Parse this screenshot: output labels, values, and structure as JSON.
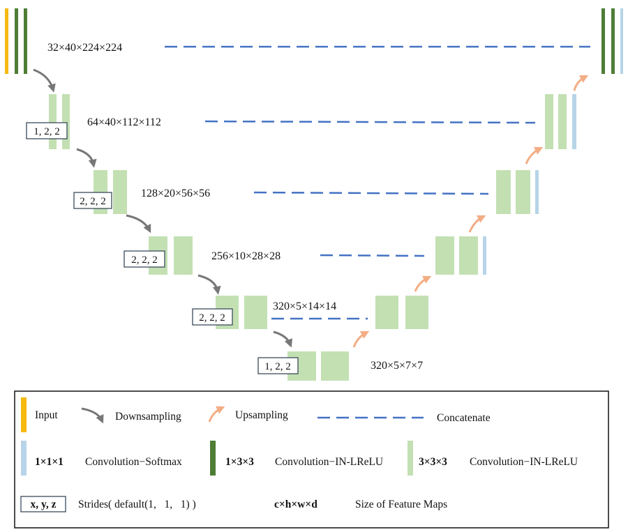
{
  "colors": {
    "input": "#f5b90f",
    "conv_1x3x3": "#4e7d36",
    "conv_3x3x3": "#c3e0b3",
    "conv_softmax": "#b7d4e8",
    "downsample": "#777777",
    "upsample": "#f3ad85",
    "concat": "#4472c4",
    "text": "#111111"
  },
  "levels": [
    {
      "dims": "32×40×224×224"
    },
    {
      "dims": "64×40×112×112",
      "stride": "1, 2, 2"
    },
    {
      "dims": "128×20×56×56",
      "stride": "2, 2, 2"
    },
    {
      "dims": "256×10×28×28",
      "stride": "2, 2, 2"
    },
    {
      "dims": "320×5×14×14",
      "stride": "2, 2, 2"
    },
    {
      "dims": "320×5×7×7",
      "stride": "1, 2, 2"
    }
  ],
  "legend": {
    "input": "Input",
    "downsampling": "Downsampling",
    "upsampling": "Upsampling",
    "concatenate": "Concatenate",
    "conv_softmax_kernel": "1×1×1",
    "conv_softmax_label": "Convolution−Softmax",
    "conv_1x3x3_kernel": "1×3×3",
    "conv_1x3x3_label": "Convolution−IN-LReLU",
    "conv_3x3x3_kernel": "3×3×3",
    "conv_3x3x3_label": "Convolution−IN-LReLU",
    "strides_key": "x, y, z",
    "strides_label": "Strides( default(1,   1,   1) )",
    "size_key": "c×h×w×d",
    "size_label": "Size of Feature Maps"
  }
}
